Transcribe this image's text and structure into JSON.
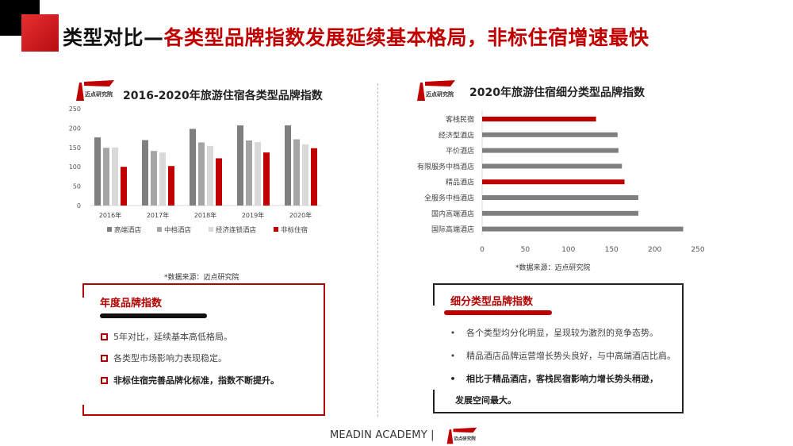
{
  "slide": {
    "title_prefix": "类型对比—",
    "title_highlight": "各类型品牌指数发展延续基本格局，非标住宿增速最快",
    "footer": "MEADIN ACADEMY |",
    "logo_text": "迈点研究院",
    "colors": {
      "accent": "#c00000",
      "dark_gray": "#7f7f7f",
      "mid_gray": "#a5a5a5",
      "light_gray": "#d9d9d9"
    }
  },
  "chart_data": [
    {
      "type": "bar",
      "title": "2016-2020年旅游住宿各类型品牌指数",
      "categories": [
        "2016年",
        "2017年",
        "2018年",
        "2019年",
        "2020年"
      ],
      "series": [
        {
          "name": "高端酒店",
          "color": "#7f7f7f",
          "values": [
            176,
            169,
            198,
            207,
            207
          ]
        },
        {
          "name": "中档酒店",
          "color": "#a5a5a5",
          "values": [
            149,
            141,
            163,
            168,
            171
          ]
        },
        {
          "name": "经济连锁酒店",
          "color": "#d9d9d9",
          "values": [
            150,
            137,
            154,
            164,
            158
          ]
        },
        {
          "name": "非标住宿",
          "color": "#c00000",
          "values": [
            100,
            102,
            122,
            137,
            148
          ]
        }
      ],
      "yticks": [
        0,
        50,
        100,
        150,
        200,
        250
      ],
      "ylim": [
        0,
        250
      ],
      "legend": "bottom",
      "grid": false,
      "source": "*数据来源：迈点研究院"
    },
    {
      "type": "bar",
      "orientation": "horizontal",
      "title": "2020年旅游住宿细分类型品牌指数",
      "categories": [
        "客栈民宿",
        "经济型酒店",
        "平价酒店",
        "有限服务中档酒店",
        "精品酒店",
        "全服务中档酒店",
        "国内高端酒店",
        "国际高端酒店"
      ],
      "values": [
        132,
        157,
        158,
        162,
        165,
        181,
        181,
        233
      ],
      "colors": [
        "#c00000",
        "#7f7f7f",
        "#7f7f7f",
        "#7f7f7f",
        "#c00000",
        "#7f7f7f",
        "#7f7f7f",
        "#7f7f7f"
      ],
      "xticks": [
        0,
        50,
        100,
        150,
        200,
        250
      ],
      "xlim": [
        0,
        250
      ],
      "grid": false,
      "source": "*数据来源：迈点研究院"
    }
  ],
  "left_box": {
    "heading": "年度品牌指数",
    "items": [
      "5年对比，延续基本高低格局。",
      "各类型市场影响力表现稳定。",
      "非标住宿完善品牌化标准，指数不断提升。"
    ]
  },
  "right_box": {
    "heading": "细分类型品牌指数",
    "items": [
      "各个类型均分化明显，呈现较为激烈的竞争态势。",
      "精品酒店品牌运营增长势头良好，与中高端酒店比肩。",
      "相比于精品酒店，客栈民宿影响力增长势头稍逊，",
      "发展空间最大。"
    ]
  }
}
